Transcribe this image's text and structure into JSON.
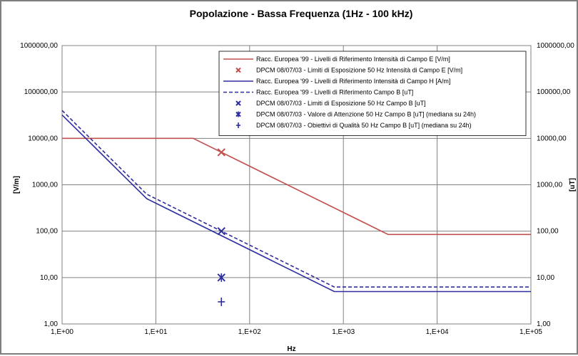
{
  "chart_data": {
    "type": "line",
    "title": "Popolazione - Bassa Frequenza (1Hz - 100 kHz)",
    "xlabel": "Hz",
    "ylabel": "[V/m]",
    "ylabel_right": "[uT]",
    "x_scale": "log",
    "y_scale": "log",
    "xlim": [
      1,
      100000
    ],
    "ylim": [
      1,
      1000000
    ],
    "grid": true,
    "legend_position": "top-right",
    "x_ticks": [
      {
        "value": 1,
        "label": "1,E+00"
      },
      {
        "value": 10,
        "label": "1,E+01"
      },
      {
        "value": 100,
        "label": "1,E+02"
      },
      {
        "value": 1000,
        "label": "1,E+03"
      },
      {
        "value": 10000,
        "label": "1,E+04"
      },
      {
        "value": 100000,
        "label": "1,E+05"
      }
    ],
    "y_ticks": [
      {
        "value": 1,
        "label": "1,00"
      },
      {
        "value": 10,
        "label": "10,00"
      },
      {
        "value": 100,
        "label": "100,00"
      },
      {
        "value": 1000,
        "label": "1000,00"
      },
      {
        "value": 10000,
        "label": "10000,00"
      },
      {
        "value": 100000,
        "label": "100000,00"
      },
      {
        "value": 1000000,
        "label": "1000000,00"
      }
    ],
    "y_ticks_right": [
      {
        "value": 1,
        "label": "1,00"
      },
      {
        "value": 10,
        "label": "10,00"
      },
      {
        "value": 100,
        "label": "100,00"
      },
      {
        "value": 1000,
        "label": "1000,00"
      },
      {
        "value": 10000,
        "label": "10000,00"
      },
      {
        "value": 100000,
        "label": "100000,00"
      },
      {
        "value": 1000000,
        "label": "1000000,00"
      }
    ],
    "colors": {
      "red": "#c0504d",
      "red_marker": "#d9534f",
      "blue": "#2e2e9e",
      "left_axis_text": "#000000",
      "right_axis_text": "#1f1f7a",
      "grid": "#808080"
    },
    "series": [
      {
        "name": "Racc. Europea '99 - Livelli di Riferimento Intensità di Campo E [V/m]",
        "kind": "line",
        "style": "solid",
        "color": "#c0504d",
        "x": [
          1,
          25,
          3000,
          100000
        ],
        "y": [
          10000,
          10000,
          85,
          85
        ]
      },
      {
        "name": "DPCM 08/07/03 - Limiti di Esposizione 50 Hz Intensità di Campo E [V/m]",
        "kind": "marker",
        "marker": "x",
        "color": "#c0504d",
        "x": [
          50
        ],
        "y": [
          5000
        ]
      },
      {
        "name": "Racc. Europea '99 - Livelli di Riferimento Intensità di Campo H [A/m]",
        "kind": "line",
        "style": "solid",
        "color": "#2e2e9e",
        "x": [
          1,
          8,
          800,
          100000
        ],
        "y": [
          32000,
          500,
          5,
          5
        ]
      },
      {
        "name": "Racc. Europea '99 - Livelli di Riferimento Campo B [uT]",
        "kind": "line",
        "style": "dashed",
        "color": "#2e2e9e",
        "x": [
          1,
          8,
          800,
          100000
        ],
        "y": [
          40000,
          625,
          6.25,
          6.25
        ]
      },
      {
        "name": "DPCM 08/07/03 - Limiti di Esposizione 50 Hz Campo B [uT]",
        "kind": "marker",
        "marker": "x",
        "color": "#2e2e9e",
        "x": [
          50
        ],
        "y": [
          100
        ]
      },
      {
        "name": "DPCM 08/07/03 - Valore di Attenzione 50 Hz Campo B [uT] (mediana su 24h)",
        "kind": "marker",
        "marker": "asterisk",
        "color": "#2e2e9e",
        "x": [
          50
        ],
        "y": [
          10
        ]
      },
      {
        "name": "DPCM 08/07/03 - Obiettivi di Qualità 50 Hz Campo B [uT] (mediana su 24h)",
        "kind": "marker",
        "marker": "plus",
        "color": "#2e2e9e",
        "x": [
          50
        ],
        "y": [
          3
        ]
      }
    ]
  }
}
